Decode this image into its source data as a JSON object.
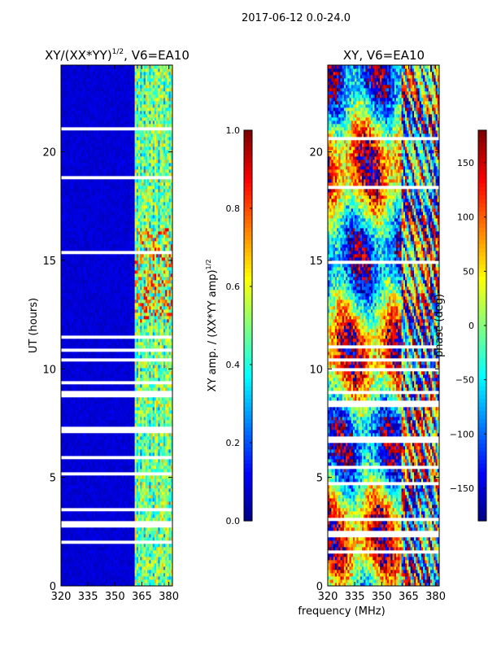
{
  "figure": {
    "suptitle": "2017-06-12 0.0-24.0",
    "shared_xlabel": "frequency (MHz)"
  },
  "colormap": [
    "#00007f",
    "#0000ff",
    "#007fff",
    "#00ffff",
    "#7fff7f",
    "#ffff00",
    "#ff7f00",
    "#ff0000",
    "#7f0000"
  ],
  "chart_data": [
    {
      "type": "heatmap",
      "title_main": "XY/(XX*YY)",
      "title_sup": "1/2",
      "title_tail": ", V6=EA10",
      "xlabel": "",
      "ylabel": "UT (hours)",
      "xlim": [
        320,
        382
      ],
      "ylim": [
        0,
        24
      ],
      "xticks": [
        320,
        335,
        350,
        365,
        380
      ],
      "yticks": [
        0,
        5,
        10,
        15,
        20
      ],
      "colorbar": {
        "label_main": "XY amp. / (XX*YY amp)",
        "label_sup": "1/2",
        "range": [
          0.0,
          1.0
        ],
        "ticks": [
          "0.0",
          "0.2",
          "0.4",
          "0.6",
          "0.8",
          "1.0"
        ],
        "tick_values": [
          0.0,
          0.2,
          0.4,
          0.6,
          0.8,
          1.0
        ]
      },
      "feature_note_freq_start": 361
    },
    {
      "type": "heatmap",
      "title_main": "XY, V6=EA10",
      "title_sup": "",
      "title_tail": "",
      "xlabel": "",
      "ylabel": "",
      "xlim": [
        320,
        382
      ],
      "ylim": [
        0,
        24
      ],
      "xticks": [
        320,
        335,
        350,
        365,
        380
      ],
      "yticks": [
        0,
        5,
        10,
        15,
        20
      ],
      "colorbar": {
        "label_main": "phase (deg)",
        "label_sup": "",
        "range": [
          -180,
          180
        ],
        "ticks": [
          "−150",
          "−100",
          "−50",
          "0",
          "50",
          "100",
          "150"
        ],
        "tick_values": [
          -150,
          -100,
          -50,
          0,
          50,
          100,
          150
        ]
      }
    }
  ]
}
